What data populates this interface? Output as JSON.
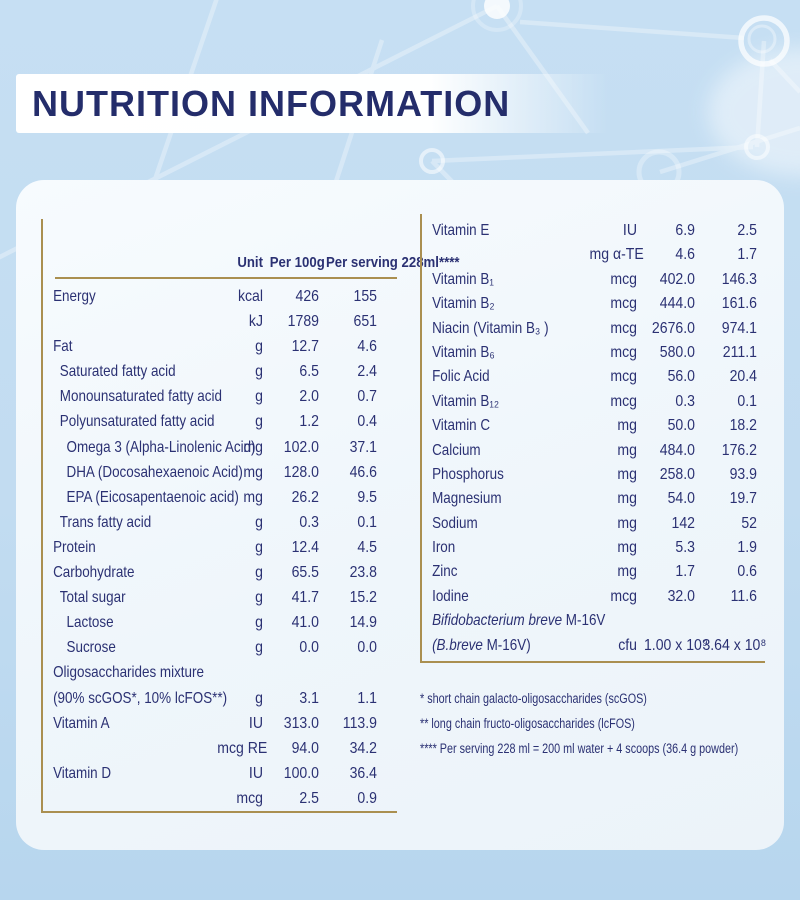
{
  "page": {
    "title": "NUTRITION INFORMATION"
  },
  "colors": {
    "gold": "#aa8f50",
    "navy": "#2b3173",
    "title_navy": "#242d6b",
    "background_blue": "#c2dcf1",
    "card_white": "#f1f7fc"
  },
  "table": {
    "header": {
      "unit": "Unit",
      "per_100g": "Per\n100g",
      "per_serving": "Per\nserving\n228ml****"
    },
    "left_rows": [
      {
        "indent": 0,
        "name": "Energy",
        "unit": "kcal",
        "per_100g": "426",
        "per_serving": "155"
      },
      {
        "indent": 0,
        "name": "",
        "unit": "kJ",
        "per_100g": "1789",
        "per_serving": "651"
      },
      {
        "indent": 0,
        "name": "Fat",
        "unit": "g",
        "per_100g": "12.7",
        "per_serving": "4.6"
      },
      {
        "indent": 1,
        "name": "Saturated fatty acid",
        "unit": "g",
        "per_100g": "6.5",
        "per_serving": "2.4"
      },
      {
        "indent": 1,
        "name": "Monounsaturated fatty acid",
        "unit": "g",
        "per_100g": "2.0",
        "per_serving": "0.7"
      },
      {
        "indent": 1,
        "name": "Polyunsaturated fatty acid",
        "unit": "g",
        "per_100g": "1.2",
        "per_serving": "0.4"
      },
      {
        "indent": 2,
        "name": "Omega 3 (Alpha-Linolenic Acid)",
        "unit": "mg",
        "per_100g": "102.0",
        "per_serving": "37.1"
      },
      {
        "indent": 2,
        "name": "DHA (Docosahexaenoic Acid)",
        "unit": "mg",
        "per_100g": "128.0",
        "per_serving": "46.6"
      },
      {
        "indent": 2,
        "name": "EPA (Eicosapentaenoic acid)",
        "unit": "mg",
        "per_100g": "26.2",
        "per_serving": "9.5"
      },
      {
        "indent": 1,
        "name": "Trans fatty acid",
        "unit": "g",
        "per_100g": "0.3",
        "per_serving": "0.1"
      },
      {
        "indent": 0,
        "name": "Protein",
        "unit": "g",
        "per_100g": "12.4",
        "per_serving": "4.5"
      },
      {
        "indent": 0,
        "name": "Carbohydrate",
        "unit": "g",
        "per_100g": "65.5",
        "per_serving": "23.8"
      },
      {
        "indent": 1,
        "name": "Total sugar",
        "unit": "g",
        "per_100g": "41.7",
        "per_serving": "15.2"
      },
      {
        "indent": 2,
        "name": "Lactose",
        "unit": "g",
        "per_100g": "41.0",
        "per_serving": "14.9"
      },
      {
        "indent": 2,
        "name": "Sucrose",
        "unit": "g",
        "per_100g": "0.0",
        "per_serving": "0.0"
      },
      {
        "indent": 0,
        "name": "Oligosaccharides mixture",
        "unit": "",
        "per_100g": "",
        "per_serving": ""
      },
      {
        "indent": 0,
        "name": "(90% scGOS*, 10% lcFOS**)",
        "unit": "g",
        "per_100g": "3.1",
        "per_serving": "1.1"
      },
      {
        "indent": 0,
        "name": "Vitamin A",
        "unit": "IU",
        "per_100g": "313.0",
        "per_serving": "113.9"
      },
      {
        "indent": 0,
        "name": "",
        "unit": "mcg RE",
        "per_100g": "94.0",
        "per_serving": "34.2"
      },
      {
        "indent": 0,
        "name": "Vitamin D",
        "unit": "IU",
        "per_100g": "100.0",
        "per_serving": "36.4"
      },
      {
        "indent": 0,
        "name": "",
        "unit": "mcg",
        "per_100g": "2.5",
        "per_serving": "0.9"
      }
    ],
    "right_rows": [
      {
        "indent": 0,
        "name": "Vitamin E",
        "unit": "IU",
        "per_100g": "6.9",
        "per_serving": "2.5"
      },
      {
        "indent": 0,
        "name": "",
        "unit": "mg α-TE",
        "per_100g": "4.6",
        "per_serving": "1.7"
      },
      {
        "indent": 0,
        "name": "Vitamin B₁",
        "unit": "mcg",
        "per_100g": "402.0",
        "per_serving": "146.3"
      },
      {
        "indent": 0,
        "name": "Vitamin B₂",
        "unit": "mcg",
        "per_100g": "444.0",
        "per_serving": "161.6"
      },
      {
        "indent": 0,
        "name": "Niacin (Vitamin B₃ )",
        "unit": "mcg",
        "per_100g": "2676.0",
        "per_serving": "974.1"
      },
      {
        "indent": 0,
        "name": "Vitamin B₆",
        "unit": "mcg",
        "per_100g": "580.0",
        "per_serving": "211.1"
      },
      {
        "indent": 0,
        "name": "Folic Acid",
        "unit": "mcg",
        "per_100g": "56.0",
        "per_serving": "20.4"
      },
      {
        "indent": 0,
        "name": "Vitamin B₁₂",
        "unit": "mcg",
        "per_100g": "0.3",
        "per_serving": "0.1"
      },
      {
        "indent": 0,
        "name": "Vitamin C",
        "unit": "mg",
        "per_100g": "50.0",
        "per_serving": "18.2"
      },
      {
        "indent": 0,
        "name": "Calcium",
        "unit": "mg",
        "per_100g": "484.0",
        "per_serving": "176.2"
      },
      {
        "indent": 0,
        "name": "Phosphorus",
        "unit": "mg",
        "per_100g": "258.0",
        "per_serving": "93.9"
      },
      {
        "indent": 0,
        "name": "Magnesium",
        "unit": "mg",
        "per_100g": "54.0",
        "per_serving": "19.7"
      },
      {
        "indent": 0,
        "name": "Sodium",
        "unit": "mg",
        "per_100g": "142",
        "per_serving": "52"
      },
      {
        "indent": 0,
        "name": "Iron",
        "unit": "mg",
        "per_100g": "5.3",
        "per_serving": "1.9"
      },
      {
        "indent": 0,
        "name": "Zinc",
        "unit": "mg",
        "per_100g": "1.7",
        "per_serving": "0.6"
      },
      {
        "indent": 0,
        "name": "Iodine",
        "unit": "mcg",
        "per_100g": "32.0",
        "per_serving": "11.6"
      },
      {
        "indent": 0,
        "name_italic": "Bifidobacterium breve",
        "name_rest": " M-16V",
        "unit": "",
        "per_100g": "",
        "per_serving": ""
      },
      {
        "indent": 0,
        "name_italic": "(B.breve",
        "name_rest": " M-16V)",
        "unit": "cfu",
        "per_100g": "1.00 x 10⁹",
        "per_serving": "3.64 x 10⁸"
      }
    ],
    "footnotes": [
      "* short chain galacto-oligosaccharides (scGOS)",
      "** long chain fructo-oligosaccharides (lcFOS)",
      "**** Per serving 228 ml = 200 ml water + 4 scoops (36.4 g powder)"
    ]
  }
}
